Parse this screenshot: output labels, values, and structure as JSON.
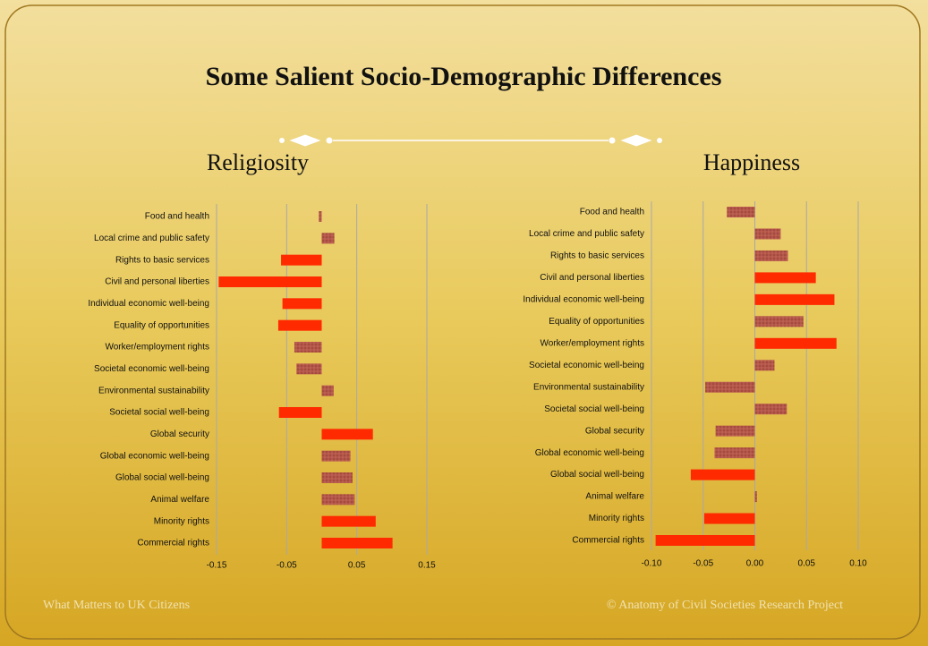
{
  "slide": {
    "title": "Some Salient Socio-Demographic Differences",
    "footer_left": "What Matters to UK Citizens",
    "footer_right": "© Anatomy of Civil Societies Research Project"
  },
  "chart_data": [
    {
      "type": "hbar",
      "title": "Religiosity",
      "categories": [
        "Food and health",
        "Local crime and public safety",
        "Rights to basic services",
        "Civil and personal liberties",
        "Individual economic well-being",
        "Equality of opportunities",
        "Worker/employment rights",
        "Societal economic well-being",
        "Environmental sustainability",
        "Societal social well-being",
        "Global security",
        "Global economic well-being",
        "Global social well-being",
        "Animal welfare",
        "Minority rights",
        "Commercial rights"
      ],
      "values": [
        -0.004,
        0.018,
        -0.058,
        -0.147,
        -0.056,
        -0.062,
        -0.039,
        -0.036,
        0.017,
        -0.061,
        0.073,
        0.041,
        0.044,
        0.047,
        0.077,
        0.101
      ],
      "colors": [
        "#b5564a",
        "#b5564a",
        "#ff2a00",
        "#ff2a00",
        "#ff2a00",
        "#ff2a00",
        "#b5564a",
        "#b5564a",
        "#b5564a",
        "#ff2a00",
        "#ff2a00",
        "#b5564a",
        "#b5564a",
        "#b5564a",
        "#ff2a00",
        "#ff2a00"
      ],
      "xlim": [
        -0.15,
        0.15
      ],
      "xticks": [
        -0.15,
        -0.05,
        0.05,
        0.15
      ],
      "grid": true
    },
    {
      "type": "hbar",
      "title": "Happiness",
      "categories": [
        "Food and health",
        "Local crime and public safety",
        "Rights to basic services",
        "Civil and personal liberties",
        "Individual economic well-being",
        "Equality of opportunities",
        "Worker/employment rights",
        "Societal economic well-being",
        "Environmental sustainability",
        "Societal social well-being",
        "Global security",
        "Global economic well-being",
        "Global social well-being",
        "Animal welfare",
        "Minority rights",
        "Commercial rights"
      ],
      "values": [
        -0.027,
        0.025,
        0.032,
        0.059,
        0.077,
        0.047,
        0.079,
        0.019,
        -0.048,
        0.031,
        -0.038,
        -0.039,
        -0.062,
        0.002,
        -0.049,
        -0.096
      ],
      "colors": [
        "#b5564a",
        "#b5564a",
        "#b5564a",
        "#ff2a00",
        "#ff2a00",
        "#b5564a",
        "#ff2a00",
        "#b5564a",
        "#b5564a",
        "#b5564a",
        "#b5564a",
        "#b5564a",
        "#ff2a00",
        "#b5564a",
        "#ff2a00",
        "#ff2a00"
      ],
      "xlim": [
        -0.1,
        0.1
      ],
      "xticks": [
        {
          "value": -0.1,
          "label": "-0.10"
        },
        -0.05,
        {
          "value": 0,
          "label": "0.00"
        },
        0.05,
        {
          "value": 0.1,
          "label": "0.10"
        }
      ],
      "grid": true
    }
  ]
}
